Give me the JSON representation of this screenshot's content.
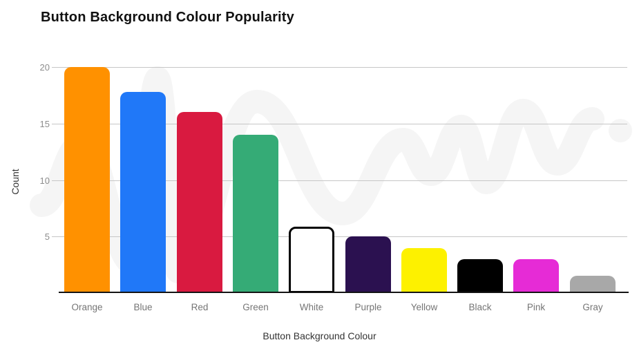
{
  "chart_data": {
    "type": "bar",
    "title": "Button Background Colour Popularity",
    "xlabel": "Button Background Colour",
    "ylabel": "Count",
    "categories": [
      "Orange",
      "Blue",
      "Red",
      "Green",
      "White",
      "Purple",
      "Yellow",
      "Black",
      "Pink",
      "Gray"
    ],
    "values": [
      20,
      17.8,
      16,
      14,
      5.9,
      5,
      4,
      3,
      3,
      1.5
    ],
    "bar_colors": [
      "#ff9100",
      "#2078f8",
      "#d91a40",
      "#35ab76",
      "#ffffff",
      "#2b1150",
      "#fdf100",
      "#000000",
      "#e62bd6",
      "#a8a8a8"
    ],
    "bar_border_colors": [
      null,
      null,
      null,
      null,
      "#000000",
      null,
      null,
      null,
      null,
      null
    ],
    "ylim": [
      0,
      20
    ],
    "yticks": [
      5,
      10,
      15,
      20
    ],
    "grid": true,
    "legend": false,
    "watermark": "light-gray hand-drawn zigzag line doodle with round end dot"
  },
  "styles": {
    "background": "#ffffff",
    "gridline_color": "#c6c6c6",
    "axis_color": "#141414",
    "tick_label_color": "#8d8d8d",
    "category_label_color": "#757575",
    "title_color": "#111111",
    "axis_title_color": "#333333",
    "watermark_color": "#f5f5f5"
  }
}
